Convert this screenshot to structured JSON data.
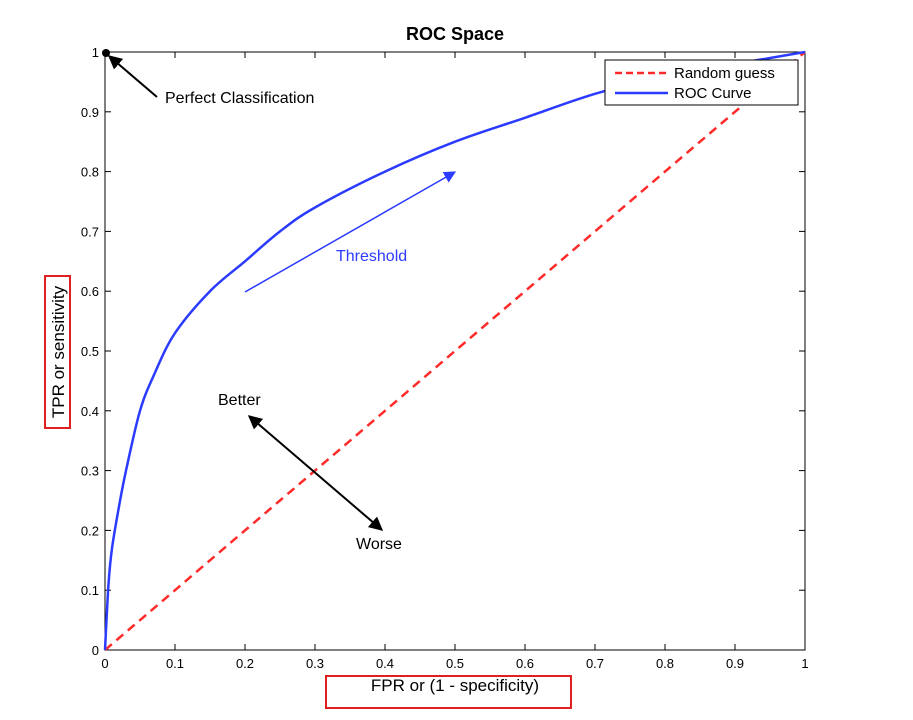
{
  "chart_data": {
    "type": "line",
    "title": "ROC Space",
    "xlabel": "FPR or (1 - specificity)",
    "ylabel": "TPR or sensitivity",
    "xlim": [
      0,
      1
    ],
    "ylim": [
      0,
      1
    ],
    "xticks": [
      "0",
      "0.1",
      "0.2",
      "0.3",
      "0.4",
      "0.5",
      "0.6",
      "0.7",
      "0.8",
      "0.9",
      "1"
    ],
    "yticks": [
      "0",
      "0.1",
      "0.2",
      "0.3",
      "0.4",
      "0.5",
      "0.6",
      "0.7",
      "0.8",
      "0.9",
      "1"
    ],
    "grid": false,
    "legend_position": "top-right",
    "series": [
      {
        "name": "Random guess",
        "style": "dashed",
        "color": "#ff2a2a",
        "x": [
          0,
          1
        ],
        "y": [
          0,
          1
        ]
      },
      {
        "name": "ROC Curve",
        "style": "solid",
        "color": "#2b3bff",
        "x": [
          0,
          0.005,
          0.01,
          0.02,
          0.03,
          0.05,
          0.07,
          0.1,
          0.15,
          0.2,
          0.25,
          0.3,
          0.4,
          0.5,
          0.6,
          0.7,
          0.8,
          0.9,
          1.0
        ],
        "y": [
          0,
          0.11,
          0.17,
          0.24,
          0.3,
          0.4,
          0.46,
          0.53,
          0.6,
          0.65,
          0.7,
          0.74,
          0.8,
          0.85,
          0.89,
          0.93,
          0.96,
          0.98,
          1.0
        ]
      }
    ],
    "annotations": [
      {
        "id": "perfect",
        "text": "Perfect Classification",
        "color": "#000000"
      },
      {
        "id": "threshold",
        "text": "Threshold",
        "color": "#2b3bff"
      },
      {
        "id": "better",
        "text": "Better",
        "color": "#000000"
      },
      {
        "id": "worse",
        "text": "Worse",
        "color": "#000000"
      }
    ],
    "highlight_color": "#e02020"
  }
}
